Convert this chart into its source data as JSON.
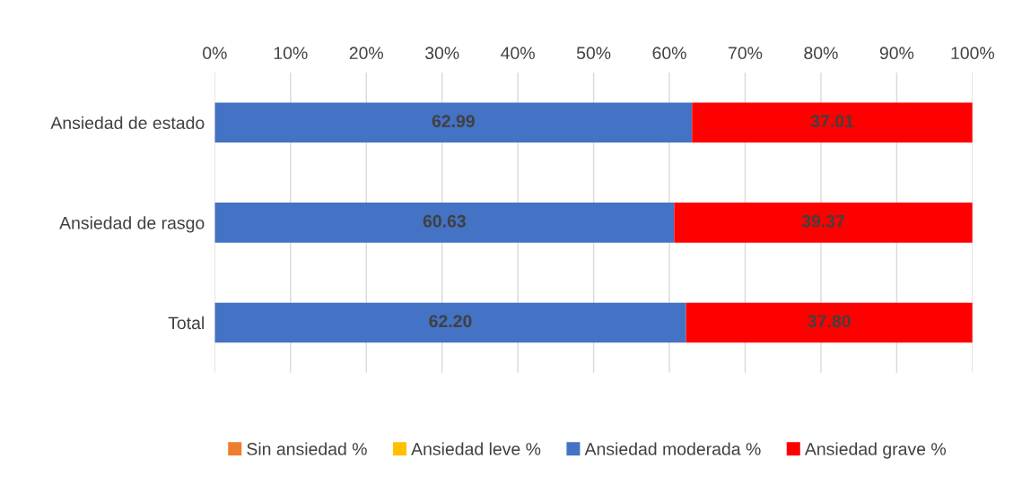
{
  "chart_data": {
    "type": "bar",
    "orientation": "horizontal",
    "stacked": true,
    "categories": [
      "Ansiedad de estado",
      "Ansiedad de rasgo",
      "Total"
    ],
    "series": [
      {
        "name": "Sin ansiedad %",
        "color": "#ed7d31",
        "values": [
          0,
          0,
          0
        ]
      },
      {
        "name": "Ansiedad leve %",
        "color": "#ffc000",
        "values": [
          0,
          0,
          0
        ]
      },
      {
        "name": "Ansiedad moderada %",
        "color": "#4472c4",
        "values": [
          62.99,
          60.63,
          62.2
        ],
        "value_labels": [
          "62.99",
          "60.63",
          "62.20"
        ]
      },
      {
        "name": "Ansiedad grave %",
        "color": "#ff0000",
        "values": [
          37.01,
          39.37,
          37.8
        ],
        "value_labels": [
          "37.01",
          "39.37",
          "37.80"
        ]
      }
    ],
    "xlim": [
      0,
      100
    ],
    "xticks": [
      {
        "value": 0,
        "label": "0%"
      },
      {
        "value": 10,
        "label": "10%"
      },
      {
        "value": 20,
        "label": "20%"
      },
      {
        "value": 30,
        "label": "30%"
      },
      {
        "value": 40,
        "label": "40%"
      },
      {
        "value": 50,
        "label": "50%"
      },
      {
        "value": 60,
        "label": "60%"
      },
      {
        "value": 70,
        "label": "70%"
      },
      {
        "value": 80,
        "label": "80%"
      },
      {
        "value": 90,
        "label": "90%"
      },
      {
        "value": 100,
        "label": "100%"
      }
    ],
    "grid": "x",
    "legend": "bottom"
  }
}
